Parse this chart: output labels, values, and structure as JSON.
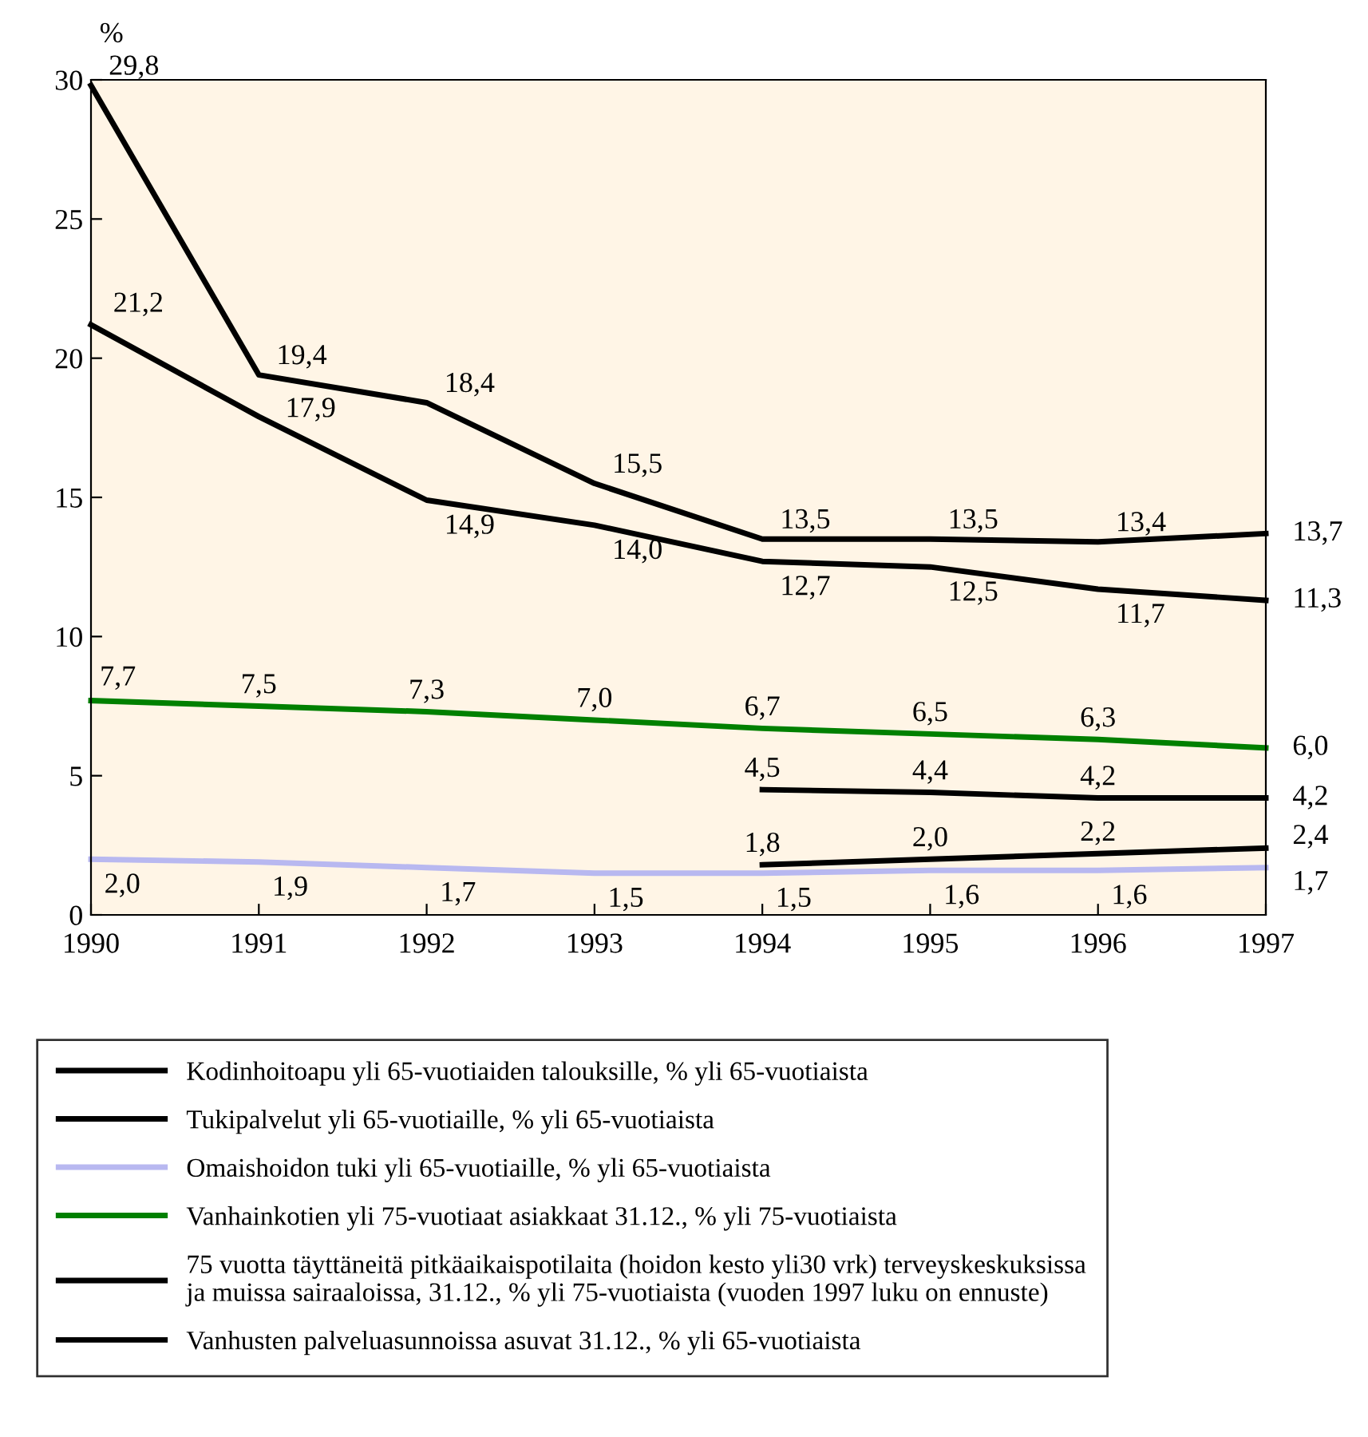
{
  "chart_data": {
    "type": "line",
    "ylabel": "%",
    "x": [
      1990,
      1991,
      1992,
      1993,
      1994,
      1995,
      1996,
      1997
    ],
    "xlim": [
      1990,
      1997
    ],
    "xticks": [
      1990,
      1991,
      1992,
      1993,
      1994,
      1995,
      1996,
      1997
    ],
    "ylim": [
      0,
      30
    ],
    "yticks": [
      0,
      5,
      10,
      15,
      20,
      25,
      30
    ],
    "grid": false,
    "legend": "bottom",
    "marker": "none",
    "line_style": "solid",
    "series": [
      {
        "name": "Kodinhoitoapu yli 65-vuotiaiden talouksille, % yli 65-vuotiaista",
        "color": "#000000",
        "values": [
          29.8,
          19.4,
          18.4,
          15.5,
          13.5,
          13.5,
          13.4,
          13.7
        ],
        "value_labels": [
          "29,8",
          "19,4",
          "18,4",
          "15,5",
          "13,5",
          "13,5",
          "13,4",
          "13,7"
        ]
      },
      {
        "name": "Tukipalvelut yli 65-vuotiaille, % yli 65-vuotiaista",
        "color": "#000000",
        "values": [
          21.2,
          17.9,
          14.9,
          14.0,
          12.7,
          12.5,
          11.7,
          11.3
        ],
        "value_labels": [
          "21,2",
          "17,9",
          "14,9",
          "14,0",
          "12,7",
          "12,5",
          "11,7",
          "11,3"
        ]
      },
      {
        "name": "Omaishoidon tuki yli 65-vuotiaille, % yli 65-vuotiaista",
        "color": "#b8b8f0",
        "values": [
          2.0,
          1.9,
          1.7,
          1.5,
          1.5,
          1.6,
          1.6,
          1.7
        ],
        "value_labels": [
          "2,0",
          "1,9",
          "1,7",
          "1,5",
          "1,5",
          "1,6",
          "1,6",
          "1,7"
        ]
      },
      {
        "name": "Vanhainkotien yli 75-vuotiaat asiakkaat 31.12., % yli 75-vuotiaista",
        "color": "#008000",
        "values": [
          7.7,
          7.5,
          7.3,
          7.0,
          6.7,
          6.5,
          6.3,
          6.0
        ],
        "value_labels": [
          "7,7",
          "7,5",
          "7,3",
          "7,0",
          "6,7",
          "6,5",
          "6,3",
          "6,0"
        ]
      },
      {
        "name": "75 vuotta täyttäneitä pitkäaikaispotilaita (hoidon kesto yli30 vrk) terveyskeskuksissa\nja muissa sairaaloissa, 31.12., % yli 75-vuotiaista (vuoden 1997 luku on ennuste)",
        "color": "#000000",
        "values": [
          null,
          null,
          null,
          null,
          4.5,
          4.4,
          4.2,
          4.2
        ],
        "value_labels": [
          null,
          null,
          null,
          null,
          "4,5",
          "4,4",
          "4,2",
          "4,2"
        ]
      },
      {
        "name": "Vanhusten palveluasunnoissa asuvat 31.12., % yli 65-vuotiaista",
        "color": "#000000",
        "values": [
          null,
          null,
          null,
          null,
          1.8,
          2.0,
          2.2,
          2.4
        ],
        "value_labels": [
          null,
          null,
          null,
          null,
          "1,8",
          "2,0",
          "2,2",
          "2,4"
        ]
      }
    ]
  }
}
